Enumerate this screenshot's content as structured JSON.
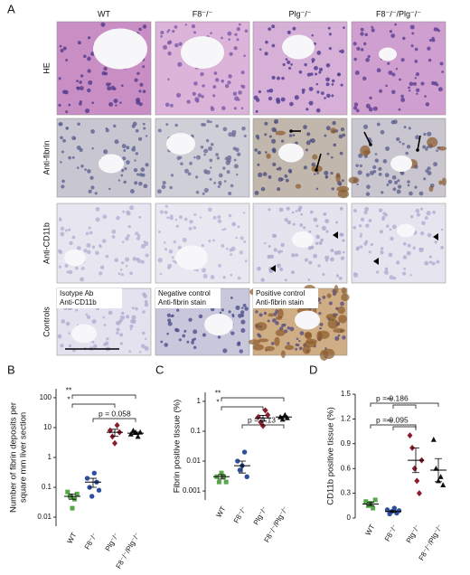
{
  "panel_a": {
    "label": "A",
    "columns": [
      "WT",
      "F8⁻/⁻",
      "Plg⁻/⁻",
      "F8⁻/⁻/Plg⁻/⁻"
    ],
    "rows": [
      "HE",
      "Anti-fibrin",
      "Anti-CD11b",
      "Controls"
    ],
    "control_captions": [
      [
        "Isotype Ab",
        "Anti-CD11b"
      ],
      [
        "Negative control",
        "Anti-fibrin stain"
      ],
      [
        "Positive control",
        "Anti-fibrin stain"
      ]
    ]
  },
  "chart_data": [
    {
      "type": "dot",
      "panel": "B",
      "y_label": "Number of fibrin deposits per square mm liver section",
      "categories": [
        "WT",
        "F8⁻/⁻",
        "Plg⁻/⁻",
        "F8⁻/⁻/Plg⁻/⁻"
      ],
      "colors": [
        "#5aa64a",
        "#2e4f9c",
        "#8c1d2e",
        "#111111"
      ],
      "points": [
        [
          0.07,
          0.05,
          0.02,
          0.04,
          0.06
        ],
        [
          0.2,
          0.1,
          0.05,
          0.3,
          0.15,
          0.08
        ],
        [
          8,
          5,
          3,
          12,
          7
        ],
        [
          6,
          8,
          7,
          5,
          7
        ]
      ],
      "mean": [
        0.05,
        0.15,
        7,
        6.5
      ],
      "error": [
        0.01,
        0.05,
        1.8,
        0.6
      ],
      "ylim": [
        0.005,
        200
      ],
      "yticks": [
        0.01,
        0.1,
        1,
        10,
        100
      ],
      "log_scale": true,
      "annotations": [
        "**",
        "*",
        "p = 0.058"
      ]
    },
    {
      "type": "dot",
      "panel": "C",
      "y_label": "Fibrin positive tissue (%)",
      "categories": [
        "WT",
        "F8⁻/⁻",
        "Plg⁻/⁻",
        "F8⁻/⁻/Plg⁻/⁻"
      ],
      "colors": [
        "#5aa64a",
        "#2e4f9c",
        "#8c1d2e",
        "#111111"
      ],
      "points": [
        [
          0.003,
          0.002,
          0.004,
          0.003,
          0.002
        ],
        [
          0.01,
          0.005,
          0.007,
          0.02,
          0.003
        ],
        [
          0.3,
          0.2,
          0.15,
          0.5,
          0.35
        ],
        [
          0.3,
          0.25,
          0.35,
          0.28
        ]
      ],
      "mean": [
        0.003,
        0.007,
        0.28,
        0.3
      ],
      "error": [
        0.0005,
        0.003,
        0.06,
        0.02
      ],
      "ylim": [
        0.0005,
        2
      ],
      "yticks": [
        0.001,
        0.01,
        0.1,
        1
      ],
      "log_scale": true,
      "annotations": [
        "**",
        "*",
        "p = 0.13"
      ]
    },
    {
      "type": "dot",
      "panel": "D",
      "y_label": "CD11b positive tissue (%)",
      "categories": [
        "WT",
        "F8⁻/⁻",
        "Plg⁻/⁻",
        "F8⁻/⁻/Plg⁻/⁻"
      ],
      "colors": [
        "#5aa64a",
        "#2e4f9c",
        "#8c1d2e",
        "#111111"
      ],
      "points": [
        [
          0.2,
          0.15,
          0.18,
          0.12,
          0.22
        ],
        [
          0.1,
          0.05,
          0.08,
          0.12,
          0.06,
          0.09
        ],
        [
          1.0,
          0.85,
          0.6,
          0.45,
          0.3,
          0.7
        ],
        [
          0.95,
          0.6,
          0.45,
          0.5,
          0.4
        ]
      ],
      "mean": [
        0.17,
        0.08,
        0.7,
        0.58
      ],
      "error": [
        0.02,
        0.01,
        0.15,
        0.14
      ],
      "ylim": [
        0,
        1.5
      ],
      "yticks": [
        0,
        0.3,
        0.6,
        0.9,
        1.2,
        1.5
      ],
      "log_scale": false,
      "annotations": [
        "p = 0.186",
        "**",
        "p = 0.095",
        "**"
      ]
    }
  ]
}
